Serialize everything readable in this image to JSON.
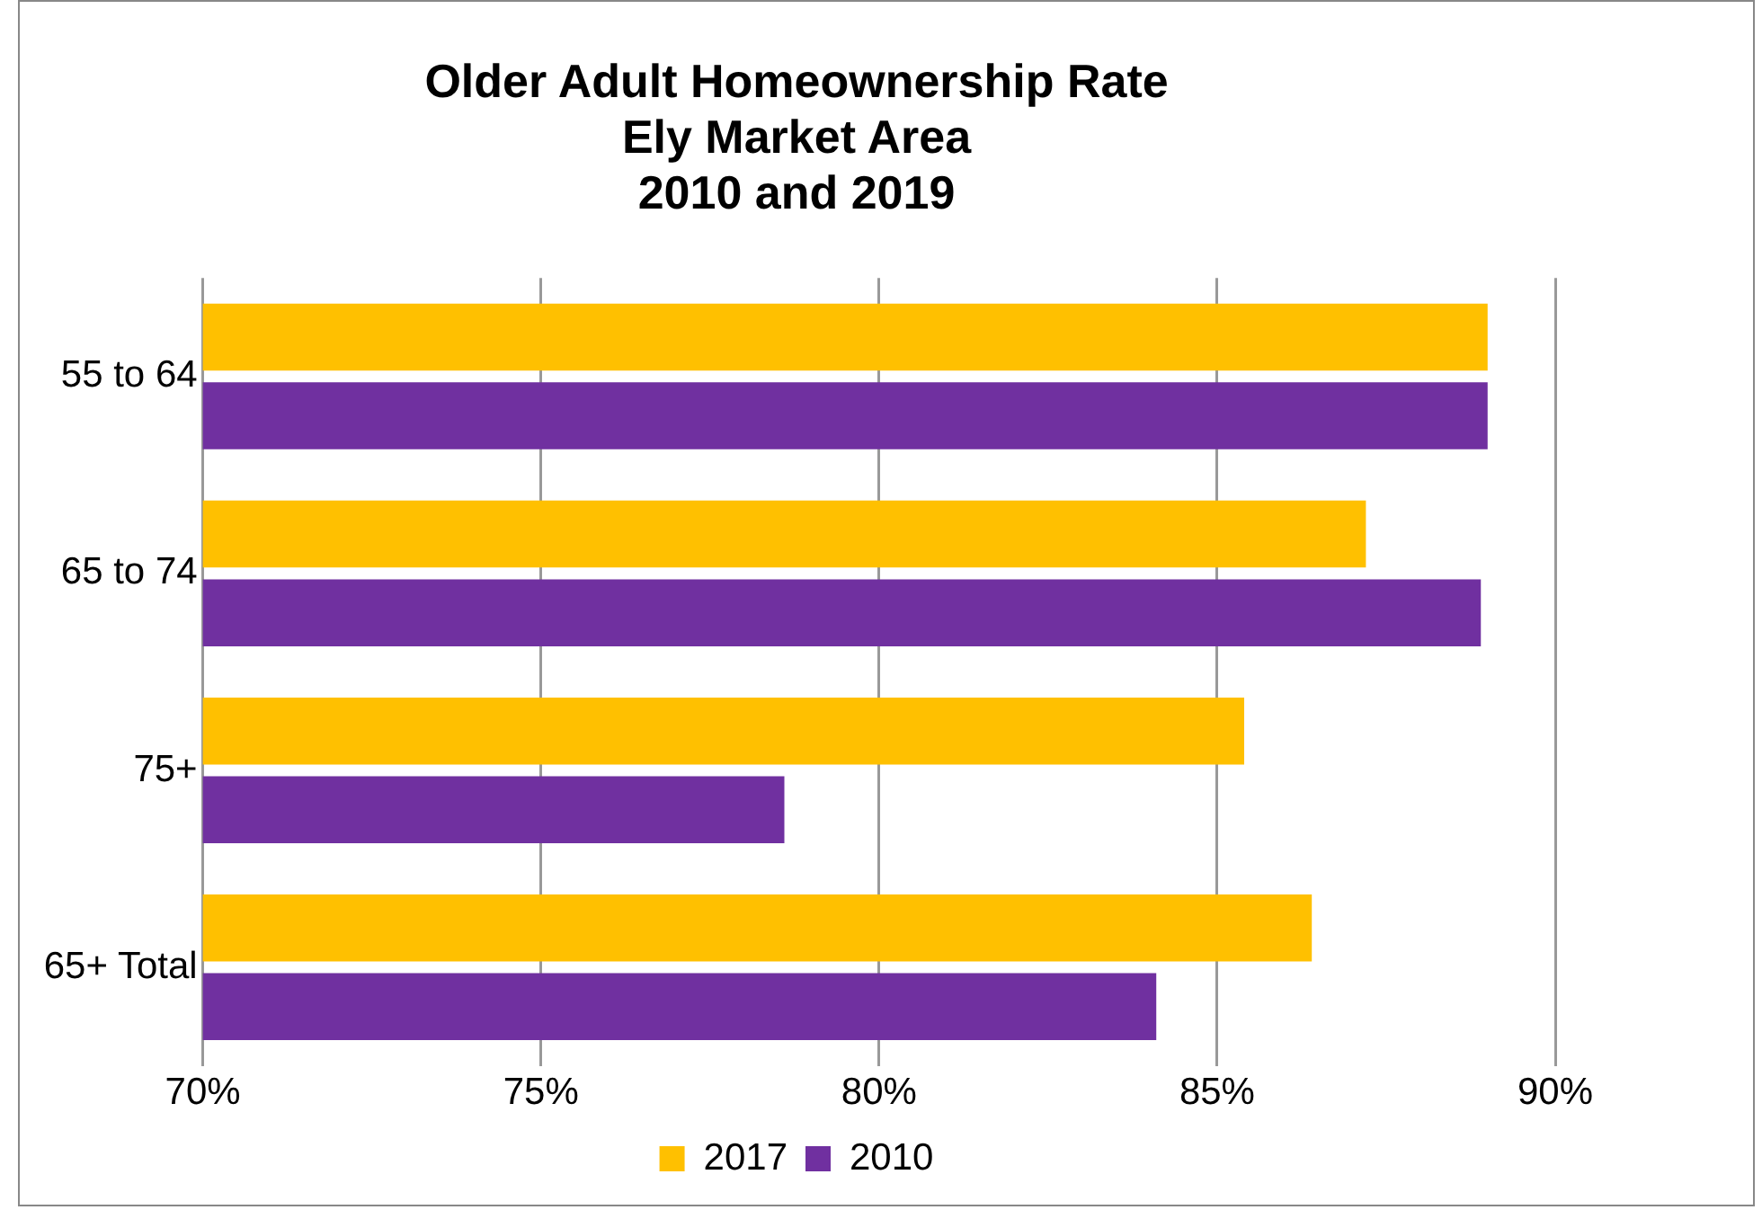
{
  "chart_data": {
    "type": "bar",
    "orientation": "horizontal",
    "title": "Older Adult Homeownership Rate\nEly Market Area\n2010 and 2019",
    "categories": [
      "55 to 64",
      "65 to 74",
      "75+",
      "65+ Total"
    ],
    "series": [
      {
        "name": "2017",
        "color": "#ffc000",
        "values": [
          89.0,
          87.2,
          85.4,
          86.4
        ]
      },
      {
        "name": "2010",
        "color": "#7030a0",
        "values": [
          89.0,
          88.9,
          78.6,
          84.1
        ]
      }
    ],
    "xlim": [
      70,
      90
    ],
    "xticks": [
      {
        "value": 70,
        "label": "70%"
      },
      {
        "value": 75,
        "label": "75%"
      },
      {
        "value": 80,
        "label": "80%"
      },
      {
        "value": 85,
        "label": "85%"
      },
      {
        "value": 90,
        "label": "90%"
      }
    ],
    "grid": "x",
    "legend": "bottom"
  }
}
